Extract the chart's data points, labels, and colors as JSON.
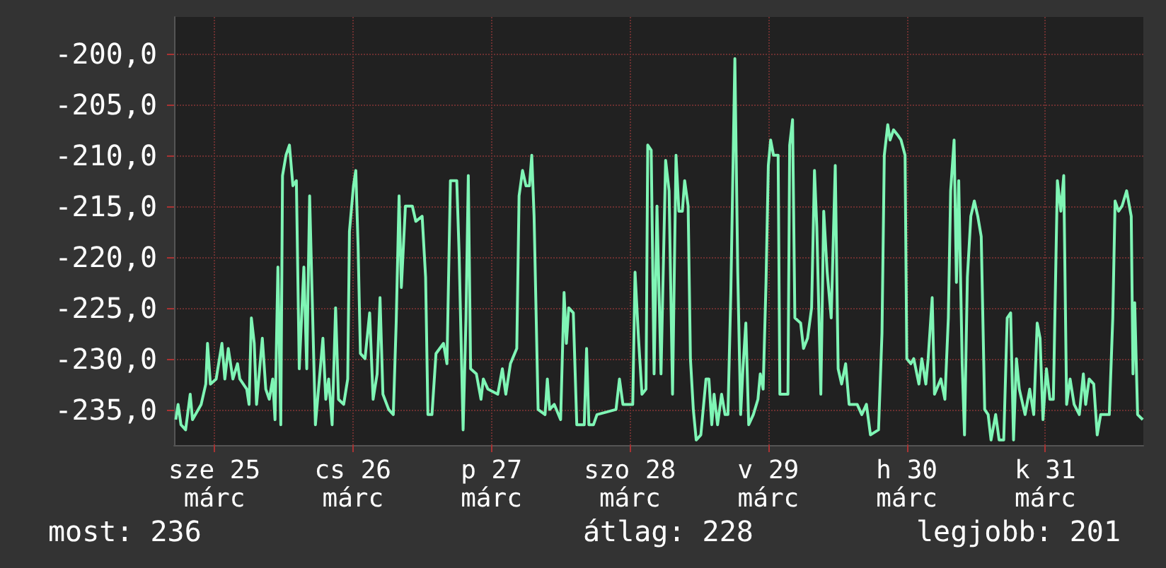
{
  "chart_data": {
    "type": "line",
    "xlim": [
      "--03-24T17:00",
      "--03-31T17:00"
    ],
    "ylim": [
      -238.5,
      -196.4
    ],
    "xticks": [
      {
        "value": "--03-25",
        "label": "sze 25 márc"
      },
      {
        "value": "--03-26",
        "label": "cs 26 márc"
      },
      {
        "value": "--03-27",
        "label": "p 27 márc"
      },
      {
        "value": "--03-28",
        "label": "szo 28 márc"
      },
      {
        "value": "--03-29",
        "label": "v 29 márc"
      },
      {
        "value": "--03-30",
        "label": "h 30 márc"
      },
      {
        "value": "--03-31",
        "label": "k 31 márc"
      }
    ],
    "yticks": [
      {
        "value": -200,
        "label": "-200,0"
      },
      {
        "value": -205,
        "label": "-205,0"
      },
      {
        "value": -210,
        "label": "-210,0"
      },
      {
        "value": -215,
        "label": "-215,0"
      },
      {
        "value": -220,
        "label": "-220,0"
      },
      {
        "value": -225,
        "label": "-225,0"
      },
      {
        "value": -230,
        "label": "-230,0"
      },
      {
        "value": -235,
        "label": "-235,0"
      }
    ],
    "grid": true,
    "marker": "none",
    "line_style": "solid",
    "annotations": [
      "most: 236",
      "átlag: 228",
      "legjobb: 201"
    ],
    "series": [
      {
        "color": "#7ff5b5",
        "x": [
          "--03-24T17:18",
          "--03-24T17:42",
          "--03-24T18:12",
          "--03-24T19:00",
          "--03-24T19:48",
          "--03-24T20:12",
          "--03-24T21:42",
          "--03-24T22:30",
          "--03-24T22:48",
          "--03-24T23:18",
          "--03-25T00:18",
          "--03-25T01:18",
          "--03-25T01:48",
          "--03-25T02:24",
          "--03-25T03:12",
          "--03-25T04:00",
          "--03-25T04:24",
          "--03-25T05:36",
          "--03-25T06:00",
          "--03-25T06:24",
          "--03-25T06:54",
          "--03-25T07:18",
          "--03-25T08:18",
          "--03-25T08:54",
          "--03-25T09:30",
          "--03-25T10:06",
          "--03-25T10:30",
          "--03-25T11:00",
          "--03-25T11:30",
          "--03-25T11:48",
          "--03-25T12:24",
          "--03-25T13:00",
          "--03-25T13:36",
          "--03-25T14:12",
          "--03-25T14:42",
          "--03-25T15:30",
          "--03-25T16:00",
          "--03-25T16:30",
          "--03-25T17:06",
          "--03-25T17:30",
          "--03-25T18:48",
          "--03-25T19:18",
          "--03-25T19:48",
          "--03-25T20:24",
          "--03-25T21:00",
          "--03-25T21:30",
          "--03-25T22:24",
          "--03-25T23:06",
          "--03-25T23:24",
          "--03-26T00:06",
          "--03-26T00:30",
          "--03-26T00:54",
          "--03-26T01:18",
          "--03-26T02:06",
          "--03-26T02:54",
          "--03-26T03:30",
          "--03-26T04:12",
          "--03-26T04:42",
          "--03-26T05:12",
          "--03-26T06:12",
          "--03-26T07:00",
          "--03-26T07:30",
          "--03-26T08:00",
          "--03-26T08:24",
          "--03-26T09:06",
          "--03-26T10:18",
          "--03-26T10:54",
          "--03-26T12:00",
          "--03-26T12:36",
          "--03-26T13:00",
          "--03-26T13:42",
          "--03-26T14:24",
          "--03-26T15:42",
          "--03-26T16:18",
          "--03-26T16:54",
          "--03-26T18:00",
          "--03-26T18:24",
          "--03-26T19:06",
          "--03-26T19:36",
          "--03-26T20:00",
          "--03-26T20:24",
          "--03-26T21:24",
          "--03-26T22:12",
          "--03-26T22:36",
          "--03-26T23:24",
          "--03-27T01:06",
          "--03-27T01:54",
          "--03-27T02:30",
          "--03-27T03:18",
          "--03-27T04:24",
          "--03-27T04:48",
          "--03-27T05:24",
          "--03-27T06:00",
          "--03-27T06:36",
          "--03-27T07:00",
          "--03-27T07:24",
          "--03-27T08:06",
          "--03-27T09:18",
          "--03-27T09:42",
          "--03-27T10:06",
          "--03-27T10:54",
          "--03-27T12:00",
          "--03-27T12:36",
          "--03-27T13:00",
          "--03-27T13:24",
          "--03-27T14:12",
          "--03-27T14:48",
          "--03-27T16:06",
          "--03-27T16:30",
          "--03-27T16:54",
          "--03-27T17:42",
          "--03-27T18:18",
          "--03-27T21:36",
          "--03-27T22:12",
          "--03-27T22:48",
          "--03-28T00:30",
          "--03-28T00:54",
          "--03-28T01:30",
          "--03-28T02:06",
          "--03-28T02:48",
          "--03-28T03:06",
          "--03-28T03:42",
          "--03-28T04:12",
          "--03-28T04:42",
          "--03-28T05:24",
          "--03-28T06:12",
          "--03-28T06:48",
          "--03-28T07:24",
          "--03-28T08:00",
          "--03-28T08:30",
          "--03-28T09:06",
          "--03-28T09:30",
          "--03-28T10:06",
          "--03-28T10:30",
          "--03-28T11:00",
          "--03-28T11:30",
          "--03-28T12:18",
          "--03-28T13:12",
          "--03-28T13:42",
          "--03-28T14:12",
          "--03-28T14:36",
          "--03-28T15:12",
          "--03-28T15:54",
          "--03-28T16:30",
          "--03-28T17:00",
          "--03-28T17:30",
          "--03-28T18:12",
          "--03-28T18:42",
          "--03-28T19:12",
          "--03-28T19:36",
          "--03-28T20:06",
          "--03-28T20:36",
          "--03-28T21:24",
          "--03-28T22:12",
          "--03-28T22:36",
          "--03-28T23:06",
          "--03-28T23:36",
          "--03-29T00:00",
          "--03-29T00:24",
          "--03-29T00:54",
          "--03-29T01:42",
          "--03-29T02:00",
          "--03-29T03:24",
          "--03-29T03:42",
          "--03-29T04:12",
          "--03-29T04:36",
          "--03-29T05:36",
          "--03-29T06:06",
          "--03-29T06:48",
          "--03-29T07:30",
          "--03-29T08:00",
          "--03-29T08:24",
          "--03-29T09:06",
          "--03-29T09:36",
          "--03-29T10:12",
          "--03-29T10:54",
          "--03-29T11:36",
          "--03-29T12:06",
          "--03-29T12:42",
          "--03-29T13:24",
          "--03-29T14:00",
          "--03-29T15:24",
          "--03-29T16:12",
          "--03-29T17:00",
          "--03-29T17:42",
          "--03-29T19:06",
          "--03-29T19:42",
          "--03-29T20:06",
          "--03-29T20:42",
          "--03-29T21:06",
          "--03-29T21:42",
          "--03-29T22:24",
          "--03-29T23:00",
          "--03-29T23:42",
          "--03-30T00:00",
          "--03-30T00:42",
          "--03-30T01:12",
          "--03-30T02:06",
          "--03-30T02:36",
          "--03-30T03:18",
          "--03-30T03:42",
          "--03-30T04:24",
          "--03-30T04:48",
          "--03-30T05:54",
          "--03-30T06:36",
          "--03-30T07:12",
          "--03-30T07:36",
          "--03-30T08:12",
          "--03-30T08:36",
          "--03-30T09:00",
          "--03-30T09:36",
          "--03-30T10:00",
          "--03-30T10:30",
          "--03-30T11:06",
          "--03-30T11:42",
          "--03-30T12:18",
          "--03-30T12:54",
          "--03-30T13:30",
          "--03-30T14:06",
          "--03-30T14:36",
          "--03-30T15:24",
          "--03-30T16:00",
          "--03-30T16:48",
          "--03-30T17:24",
          "--03-30T18:00",
          "--03-30T18:30",
          "--03-30T19:00",
          "--03-30T19:30",
          "--03-30T20:30",
          "--03-30T21:18",
          "--03-30T22:00",
          "--03-30T22:36",
          "--03-30T23:06",
          "--03-30T23:36",
          "--03-31T00:12",
          "--03-31T00:48",
          "--03-31T01:24",
          "--03-31T02:06",
          "--03-31T02:42",
          "--03-31T03:12",
          "--03-31T03:42",
          "--03-31T04:18",
          "--03-31T05:00",
          "--03-31T05:54",
          "--03-31T06:36",
          "--03-31T07:00",
          "--03-31T07:36",
          "--03-31T08:24",
          "--03-31T09:00",
          "--03-31T09:36",
          "--03-31T11:06",
          "--03-31T11:42",
          "--03-31T12:06",
          "--03-31T12:42",
          "--03-31T13:18",
          "--03-31T14:06",
          "--03-31T14:54",
          "--03-31T15:12",
          "--03-31T15:30",
          "--03-31T16:00",
          "--03-31T16:54"
        ],
        "values": [
          -236,
          -234.5,
          -236.5,
          -237,
          -233.5,
          -236,
          -234.5,
          -232.5,
          -228.5,
          -232.5,
          -232,
          -228.5,
          -232,
          -229,
          -232,
          -230.5,
          -232,
          -233,
          -234.5,
          -226,
          -228.5,
          -234.5,
          -228,
          -233,
          -234,
          -232,
          -236,
          -221,
          -236.5,
          -212,
          -210,
          -209,
          -213,
          -212.5,
          -231,
          -221,
          -231,
          -214,
          -227.5,
          -236.5,
          -228,
          -234,
          -232,
          -236.5,
          -225,
          -234,
          -234.5,
          -232,
          -217.5,
          -213,
          -211.5,
          -219,
          -229.5,
          -230,
          -225.5,
          -234,
          -231.5,
          -224,
          -233.5,
          -235,
          -235.5,
          -226.5,
          -214,
          -223,
          -215,
          -215,
          -216.5,
          -216,
          -222,
          -235.5,
          -235.5,
          -229.5,
          -228.5,
          -230.5,
          -212.5,
          -212.5,
          -219.5,
          -237,
          -226,
          -212,
          -231,
          -231.5,
          -234,
          -232,
          -233,
          -233.5,
          -231,
          -233.5,
          -230.5,
          -229,
          -214,
          -211.5,
          -213,
          -213,
          -210,
          -216,
          -235,
          -235.5,
          -232,
          -235,
          -234.5,
          -236,
          -223.5,
          -228.5,
          -225,
          -225.5,
          -236.5,
          -236.5,
          -229,
          -236.5,
          -236.5,
          -235.5,
          -235,
          -232,
          -234.5,
          -234.5,
          -221.5,
          -228,
          -233.5,
          -233,
          -209,
          -209.5,
          -231.5,
          -215,
          -231.5,
          -210.5,
          -213.5,
          -233.5,
          -210,
          -215.5,
          -215.5,
          -212.5,
          -215,
          -230,
          -235,
          -238,
          -237.5,
          -232,
          -232,
          -236.5,
          -233.5,
          -236.5,
          -233.5,
          -235.5,
          -235.5,
          -223.5,
          -200.5,
          -221.5,
          -235.5,
          -231,
          -226.5,
          -236.5,
          -235.5,
          -234,
          -231.5,
          -233,
          -222.5,
          -211,
          -208.5,
          -210,
          -210,
          -233.5,
          -233.5,
          -209,
          -206.5,
          -226,
          -226.5,
          -229,
          -228,
          -225,
          -211.5,
          -217,
          -233.5,
          -215.5,
          -221.5,
          -226,
          -211,
          -231,
          -232.5,
          -230.5,
          -234.5,
          -234.5,
          -235.5,
          -234.5,
          -237.5,
          -237,
          -227.5,
          -210,
          -207,
          -208.5,
          -207.5,
          -208,
          -208.5,
          -210,
          -230,
          -230.5,
          -230,
          -232.5,
          -230,
          -232.5,
          -230,
          -224,
          -233.5,
          -232,
          -234,
          -226,
          -213.5,
          -208.5,
          -222.5,
          -212.5,
          -230.5,
          -237.5,
          -222,
          -216,
          -214.5,
          -216,
          -218,
          -235,
          -235.5,
          -238,
          -235.5,
          -238,
          -238,
          -226,
          -225.5,
          -238,
          -230,
          -233,
          -235.5,
          -233,
          -235.5,
          -226.5,
          -228,
          -236,
          -231,
          -234,
          -234,
          -212.5,
          -215.5,
          -212,
          -234.5,
          -232,
          -234.5,
          -235.5,
          -231.5,
          -234.5,
          -232,
          -232.5,
          -237.5,
          -235.5,
          -235.5,
          -226,
          -214.5,
          -215.5,
          -215,
          -213.5,
          -216,
          -231.5,
          -224.5,
          -235.5,
          -236
        ]
      }
    ]
  }
}
